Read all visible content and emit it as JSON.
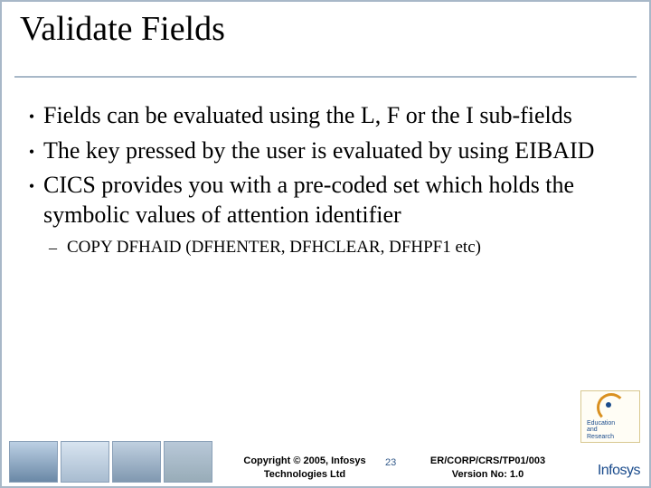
{
  "slide": {
    "title": "Validate Fields",
    "bullets": [
      {
        "level": 1,
        "text": "Fields can be evaluated using the L, F or the I sub-fields"
      },
      {
        "level": 1,
        "text": "The key pressed by the user is evaluated by using EIBAID"
      },
      {
        "level": 1,
        "text": "CICS provides you with a pre-coded set which holds the symbolic values of attention identifier"
      },
      {
        "level": 2,
        "text": "COPY DFHAID (DFHENTER, DFHCLEAR, DFHPF1 etc)"
      }
    ]
  },
  "footer": {
    "copyright_line1": "Copyright © 2005, Infosys",
    "copyright_line2": "Technologies Ltd",
    "page_number": "23",
    "reference_line1": "ER/CORP/CRS/TP01/003",
    "reference_line2": "Version No: 1.0",
    "company_logo_text": "Infosys",
    "edu_logo_line1": "Education",
    "edu_logo_line2": "and",
    "edu_logo_line3": "Research"
  },
  "style": {
    "border_color": "#a8b8c8",
    "title_fontsize": 38,
    "bullet_l1_fontsize": 26,
    "bullet_l2_fontsize": 19,
    "footer_fontsize": 11,
    "logo_color": "#1a4b8c",
    "pagenum_color": "#335a8a",
    "background": "#ffffff"
  }
}
